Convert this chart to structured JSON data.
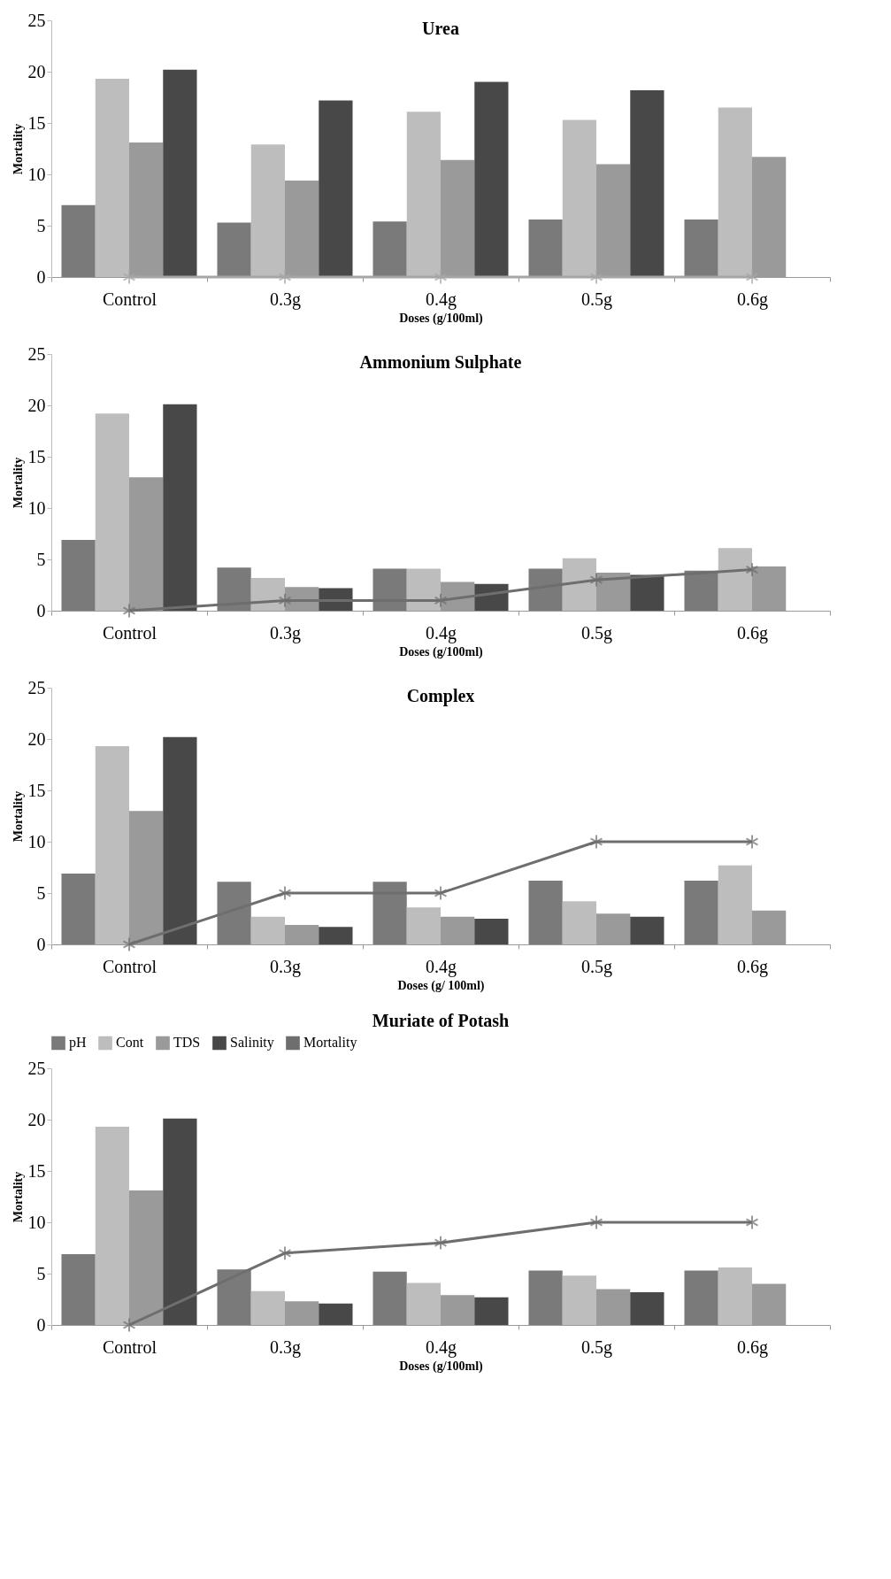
{
  "chart_data": [
    {
      "type": "bar",
      "title": "Urea",
      "xlabel": "Doses (g/100ml)",
      "ylabel": "Mortality",
      "categories": [
        "Control",
        "0.3g",
        "0.4g",
        "0.5g",
        "0.6g"
      ],
      "ylim": [
        0,
        25
      ],
      "yticks": [
        0,
        5,
        10,
        15,
        20,
        25
      ],
      "marker": "cross",
      "series": [
        {
          "color": "#7a7a7a",
          "values": [
            7,
            5.3,
            5.4,
            5.6,
            5.6
          ]
        },
        {
          "color": "#bdbdbd",
          "values": [
            19.3,
            12.9,
            16.1,
            15.3,
            16.5
          ]
        },
        {
          "color": "#9a9a9a",
          "values": [
            13.1,
            9.4,
            11.4,
            11,
            11.7
          ]
        },
        {
          "color": "#484848",
          "values": [
            20.2,
            17.2,
            19,
            18.2,
            null
          ]
        },
        {
          "type": "line",
          "color": "#a6a6a6",
          "values": [
            0,
            0,
            0,
            0,
            0
          ]
        }
      ]
    },
    {
      "type": "bar",
      "title": "Ammonium Sulphate",
      "xlabel": "Doses (g/100ml)",
      "ylabel": "Mortality",
      "categories": [
        "Control",
        "0.3g",
        "0.4g",
        "0.5g",
        "0.6g"
      ],
      "ylim": [
        0,
        25
      ],
      "yticks": [
        0,
        5,
        10,
        15,
        20,
        25
      ],
      "marker": "cross",
      "series": [
        {
          "color": "#7a7a7a",
          "values": [
            6.9,
            4.2,
            4.1,
            4.1,
            3.9
          ]
        },
        {
          "color": "#bdbdbd",
          "values": [
            19.2,
            3.2,
            4.1,
            5.1,
            6.1
          ]
        },
        {
          "color": "#9a9a9a",
          "values": [
            13,
            2.3,
            2.8,
            3.7,
            4.3
          ]
        },
        {
          "color": "#484848",
          "values": [
            20.1,
            2.2,
            2.6,
            3.5,
            null
          ]
        },
        {
          "type": "line",
          "color": "#6e6e6e",
          "values": [
            0,
            1,
            1,
            3,
            4
          ]
        }
      ]
    },
    {
      "type": "bar",
      "title": "Complex",
      "xlabel": "Doses (g/ 100ml)",
      "ylabel": "Mortality",
      "categories": [
        "Control",
        "0.3g",
        "0.4g",
        "0.5g",
        "0.6g"
      ],
      "ylim": [
        0,
        25
      ],
      "yticks": [
        0,
        5,
        10,
        15,
        20,
        25
      ],
      "marker": "cross",
      "series": [
        {
          "color": "#7a7a7a",
          "values": [
            6.9,
            6.1,
            6.1,
            6.2,
            6.2
          ]
        },
        {
          "color": "#bdbdbd",
          "values": [
            19.3,
            2.7,
            3.6,
            4.2,
            7.7
          ]
        },
        {
          "color": "#9a9a9a",
          "values": [
            13,
            1.9,
            2.7,
            3,
            3.3
          ]
        },
        {
          "color": "#484848",
          "values": [
            20.2,
            1.7,
            2.5,
            2.7,
            null
          ]
        },
        {
          "type": "line",
          "color": "#6e6e6e",
          "values": [
            0,
            5,
            5,
            10,
            10
          ]
        }
      ]
    },
    {
      "type": "bar",
      "title": "Muriate of Potash",
      "xlabel": "Doses (g/100ml)",
      "ylabel": "Mortality",
      "categories": [
        "Control",
        "0.3g",
        "0.4g",
        "0.5g",
        "0.6g"
      ],
      "ylim": [
        0,
        25
      ],
      "yticks": [
        0,
        5,
        10,
        15,
        20,
        25
      ],
      "marker": "cross",
      "legend": "top",
      "series": [
        {
          "name": "pH",
          "color": "#7a7a7a",
          "values": [
            6.9,
            5.4,
            5.2,
            5.3,
            5.3
          ]
        },
        {
          "name": "Cont",
          "color": "#bdbdbd",
          "values": [
            19.3,
            3.3,
            4.1,
            4.8,
            5.6
          ]
        },
        {
          "name": "TDS",
          "color": "#9a9a9a",
          "values": [
            13.1,
            2.3,
            2.9,
            3.5,
            4
          ]
        },
        {
          "name": "Salinity",
          "color": "#484848",
          "values": [
            20.1,
            2.1,
            2.7,
            3.2,
            null
          ]
        },
        {
          "name": "Mortality",
          "type": "line",
          "color": "#6e6e6e",
          "values": [
            0,
            7,
            8,
            10,
            10
          ]
        }
      ]
    }
  ]
}
